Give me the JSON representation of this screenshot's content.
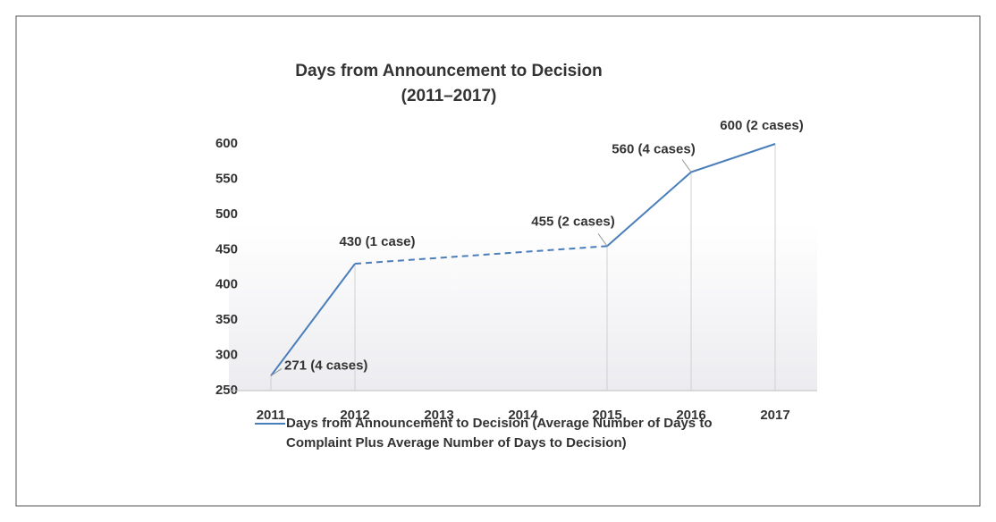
{
  "chart_data": {
    "type": "line",
    "title": [
      "Days from Announcement to Decision",
      "(2011–2017)"
    ],
    "categories": [
      "2011",
      "2012",
      "2013",
      "2014",
      "2015",
      "2016",
      "2017"
    ],
    "series": [
      {
        "name": "Days from Announcement to Decision (Average Number of Days to Complaint Plus Average Number of Days to Decision)",
        "color": "#4a7ebb",
        "values": [
          271,
          430,
          null,
          null,
          455,
          560,
          600
        ],
        "value_labels": [
          "271 (4 cases)",
          "430 (1 case)",
          null,
          null,
          "455 (2 cases)",
          "560 (4 cases)",
          "600 (2 cases)"
        ]
      }
    ],
    "ylim": [
      250,
      600
    ],
    "yticks": [
      250,
      300,
      350,
      400,
      450,
      500,
      550,
      600
    ],
    "legend": "bottom"
  }
}
